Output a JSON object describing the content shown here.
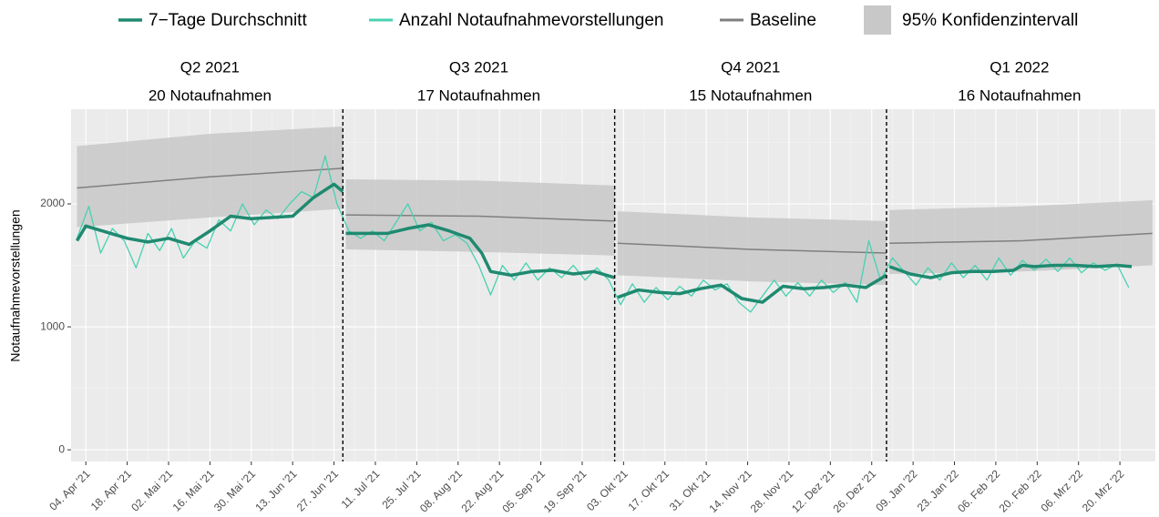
{
  "chart_data": {
    "type": "line",
    "ylabel": "Notaufnahmevorstellungen",
    "xlim": [
      "2021-03-30",
      "2022-04-01"
    ],
    "ylim": [
      -95,
      2770
    ],
    "yticks": [
      0,
      1000,
      2000
    ],
    "xticks": [
      {
        "value": "2021-04-04",
        "label": "04. Apr '21"
      },
      {
        "value": "2021-04-18",
        "label": "18. Apr '21"
      },
      {
        "value": "2021-05-02",
        "label": "02. Mai '21"
      },
      {
        "value": "2021-05-16",
        "label": "16. Mai '21"
      },
      {
        "value": "2021-05-30",
        "label": "30. Mai '21"
      },
      {
        "value": "2021-06-13",
        "label": "13. Jun '21"
      },
      {
        "value": "2021-06-27",
        "label": "27. Jun '21"
      },
      {
        "value": "2021-07-11",
        "label": "11. Jul '21"
      },
      {
        "value": "2021-07-25",
        "label": "25. Jul '21"
      },
      {
        "value": "2021-08-08",
        "label": "08. Aug '21"
      },
      {
        "value": "2021-08-22",
        "label": "22. Aug '21"
      },
      {
        "value": "2021-09-05",
        "label": "05. Sep '21"
      },
      {
        "value": "2021-09-19",
        "label": "19. Sep '21"
      },
      {
        "value": "2021-10-03",
        "label": "03. Okt '21"
      },
      {
        "value": "2021-10-17",
        "label": "17. Okt '21"
      },
      {
        "value": "2021-10-31",
        "label": "31. Okt '21"
      },
      {
        "value": "2021-11-14",
        "label": "14. Nov '21"
      },
      {
        "value": "2021-11-28",
        "label": "28. Nov '21"
      },
      {
        "value": "2021-12-12",
        "label": "12. Dez '21"
      },
      {
        "value": "2021-12-26",
        "label": "26. Dez '21"
      },
      {
        "value": "2022-01-09",
        "label": "09. Jan '22"
      },
      {
        "value": "2022-01-23",
        "label": "23. Jan '22"
      },
      {
        "value": "2022-02-06",
        "label": "06. Feb '22"
      },
      {
        "value": "2022-02-20",
        "label": "20. Feb '22"
      },
      {
        "value": "2022-03-06",
        "label": "06. Mrz '22"
      },
      {
        "value": "2022-03-20",
        "label": "20. Mrz '22"
      }
    ],
    "grid": true,
    "quarters": [
      {
        "title": "Q2 2021",
        "subtitle": "20 Notaufnahmen",
        "start": "2021-04-01",
        "end": "2021-06-30"
      },
      {
        "title": "Q3 2021",
        "subtitle": "17 Notaufnahmen",
        "start": "2021-06-30",
        "end": "2021-09-30"
      },
      {
        "title": "Q4 2021",
        "subtitle": "15 Notaufnahmen",
        "start": "2021-09-30",
        "end": "2021-12-31"
      },
      {
        "title": "Q1 2022",
        "subtitle": "16 Notaufnahmen",
        "start": "2021-12-31",
        "end": "2022-03-31"
      }
    ],
    "band": {
      "name": "95% Konfidenzintervall",
      "color": "#c8c8c8",
      "x": [
        "2021-04-01",
        "2021-05-16",
        "2021-06-30",
        null,
        "2021-07-01",
        "2021-08-15",
        "2021-09-30",
        null,
        "2021-10-01",
        "2021-11-15",
        "2021-12-31",
        null,
        "2022-01-01",
        "2022-02-15",
        "2022-03-31"
      ],
      "lower": [
        1810,
        1890,
        1960,
        null,
        1630,
        1610,
        1580,
        null,
        1420,
        1370,
        1340,
        null,
        1430,
        1450,
        1500
      ],
      "upper": [
        2470,
        2570,
        2630,
        null,
        2200,
        2190,
        2150,
        null,
        1940,
        1890,
        1860,
        null,
        1950,
        1980,
        2030
      ]
    },
    "series": [
      {
        "name": "7−Tage Durchschnitt",
        "color": "#1f8a70",
        "width": 3.5,
        "x": [
          "2021-04-01",
          "2021-04-04",
          "2021-04-11",
          "2021-04-18",
          "2021-04-25",
          "2021-05-02",
          "2021-05-09",
          "2021-05-16",
          "2021-05-23",
          "2021-05-30",
          "2021-06-06",
          "2021-06-13",
          "2021-06-20",
          "2021-06-27",
          "2021-06-30",
          null,
          "2021-07-01",
          "2021-07-08",
          "2021-07-15",
          "2021-07-22",
          "2021-07-29",
          "2021-08-05",
          "2021-08-12",
          "2021-08-16",
          "2021-08-19",
          "2021-08-26",
          "2021-09-02",
          "2021-09-09",
          "2021-09-16",
          "2021-09-23",
          "2021-09-30",
          null,
          "2021-10-01",
          "2021-10-08",
          "2021-10-15",
          "2021-10-22",
          "2021-10-29",
          "2021-11-05",
          "2021-11-12",
          "2021-11-19",
          "2021-11-26",
          "2021-12-03",
          "2021-12-10",
          "2021-12-17",
          "2021-12-24",
          "2021-12-31",
          null,
          "2022-01-01",
          "2022-01-08",
          "2022-01-15",
          "2022-01-22",
          "2022-01-29",
          "2022-02-05",
          "2022-02-12",
          "2022-02-15",
          "2022-02-19",
          "2022-02-26",
          "2022-03-05",
          "2022-03-12",
          "2022-03-19",
          "2022-03-24"
        ],
        "values": [
          1700,
          1820,
          1770,
          1720,
          1690,
          1720,
          1670,
          1780,
          1900,
          1880,
          1890,
          1900,
          2050,
          2160,
          2100,
          null,
          1760,
          1760,
          1760,
          1800,
          1830,
          1780,
          1720,
          1600,
          1450,
          1420,
          1450,
          1460,
          1430,
          1450,
          1400,
          null,
          1240,
          1300,
          1280,
          1270,
          1310,
          1340,
          1230,
          1200,
          1330,
          1310,
          1320,
          1340,
          1320,
          1420,
          null,
          1490,
          1430,
          1400,
          1440,
          1450,
          1450,
          1460,
          1500,
          1490,
          1500,
          1500,
          1490,
          1500,
          1490
        ]
      },
      {
        "name": "Anzahl Notaufnahmevorstellungen",
        "color": "#48d1b0",
        "width": 1.3,
        "x": [
          "2021-04-01",
          "2021-04-05",
          "2021-04-09",
          "2021-04-13",
          "2021-04-17",
          "2021-04-21",
          "2021-04-25",
          "2021-04-29",
          "2021-05-03",
          "2021-05-07",
          "2021-05-11",
          "2021-05-15",
          "2021-05-19",
          "2021-05-23",
          "2021-05-27",
          "2021-05-31",
          "2021-06-04",
          "2021-06-08",
          "2021-06-12",
          "2021-06-16",
          "2021-06-20",
          "2021-06-24",
          "2021-06-28",
          "2021-07-02",
          "2021-07-06",
          "2021-07-10",
          "2021-07-14",
          "2021-07-18",
          "2021-07-22",
          "2021-07-26",
          "2021-07-30",
          "2021-08-03",
          "2021-08-07",
          "2021-08-11",
          "2021-08-15",
          "2021-08-19",
          "2021-08-23",
          "2021-08-27",
          "2021-08-31",
          "2021-09-04",
          "2021-09-08",
          "2021-09-12",
          "2021-09-16",
          "2021-09-20",
          "2021-09-24",
          "2021-09-28",
          "2021-10-02",
          "2021-10-06",
          "2021-10-10",
          "2021-10-14",
          "2021-10-18",
          "2021-10-22",
          "2021-10-26",
          "2021-10-30",
          "2021-11-03",
          "2021-11-07",
          "2021-11-11",
          "2021-11-15",
          "2021-11-19",
          "2021-11-23",
          "2021-11-27",
          "2021-12-01",
          "2021-12-05",
          "2021-12-09",
          "2021-12-13",
          "2021-12-17",
          "2021-12-21",
          "2021-12-25",
          "2021-12-29",
          "2022-01-02",
          "2022-01-06",
          "2022-01-10",
          "2022-01-14",
          "2022-01-18",
          "2022-01-22",
          "2022-01-26",
          "2022-01-30",
          "2022-02-03",
          "2022-02-07",
          "2022-02-11",
          "2022-02-15",
          "2022-02-19",
          "2022-02-23",
          "2022-02-27",
          "2022-03-03",
          "2022-03-07",
          "2022-03-11",
          "2022-03-15",
          "2022-03-19",
          "2022-03-23"
        ],
        "values": [
          1720,
          1980,
          1600,
          1800,
          1700,
          1480,
          1760,
          1620,
          1800,
          1560,
          1700,
          1640,
          1870,
          1780,
          2000,
          1830,
          1950,
          1880,
          2000,
          2100,
          2050,
          2390,
          2000,
          1780,
          1720,
          1780,
          1700,
          1850,
          2000,
          1780,
          1850,
          1700,
          1750,
          1680,
          1500,
          1260,
          1500,
          1380,
          1520,
          1380,
          1480,
          1400,
          1500,
          1380,
          1480,
          1380,
          1180,
          1350,
          1200,
          1320,
          1220,
          1330,
          1250,
          1380,
          1300,
          1350,
          1200,
          1120,
          1250,
          1380,
          1250,
          1360,
          1250,
          1380,
          1280,
          1360,
          1200,
          1700,
          1380,
          1560,
          1450,
          1340,
          1480,
          1380,
          1520,
          1400,
          1500,
          1380,
          1560,
          1420,
          1540,
          1460,
          1550,
          1450,
          1560,
          1440,
          1520,
          1460,
          1510,
          1320
        ]
      },
      {
        "name": "Baseline",
        "color": "#7f7f7f",
        "width": 1.5,
        "x": [
          "2021-04-01",
          "2021-05-16",
          "2021-06-30",
          null,
          "2021-07-01",
          "2021-08-15",
          "2021-09-30",
          null,
          "2021-10-01",
          "2021-11-15",
          "2021-12-31",
          null,
          "2022-01-01",
          "2022-02-15",
          "2022-03-31"
        ],
        "values": [
          2130,
          2220,
          2290,
          null,
          1910,
          1900,
          1860,
          null,
          1680,
          1630,
          1600,
          null,
          1680,
          1700,
          1760
        ]
      }
    ]
  }
}
